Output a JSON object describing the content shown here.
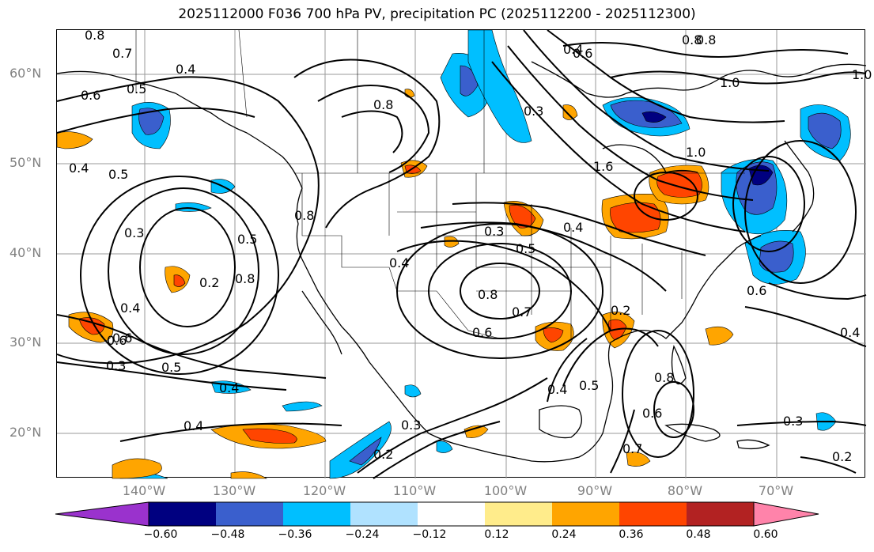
{
  "title": "2025112000 F036 700 hPa PV, precipitation PC (2025112200 - 2025112300)",
  "lat_labels": [
    "60°N",
    "50°N",
    "40°N",
    "30°N",
    "20°N"
  ],
  "lon_labels": [
    "140°W",
    "130°W",
    "120°W",
    "110°W",
    "100°W",
    "90°W",
    "80°W",
    "70°W"
  ],
  "contour_labels": [
    "0.8",
    "0.7",
    "0.5",
    "0.4",
    "0.6",
    "0.5",
    "0.8",
    "0.4",
    "0.5",
    "0.3",
    "0.2",
    "0.6",
    "0.8",
    "0.8",
    "0.4",
    "0.6",
    "0.3",
    "0.5",
    "0.4",
    "0.4",
    "0.3",
    "0.5",
    "0.4",
    "0.8",
    "0.7",
    "0.6",
    "0.4",
    "0.3",
    "0.2",
    "0.2",
    "0.4",
    "0.5",
    "0.6",
    "0.8",
    "0.7",
    "1.0",
    "0.8",
    "1.6",
    "0.4",
    "0.3",
    "0.2",
    "0.6",
    "0.4",
    "0.3",
    "0.8",
    "1.0",
    "1.0",
    "0.6"
  ],
  "colorbar": {
    "ticks": [
      "−0.60",
      "−0.48",
      "−0.36",
      "−0.24",
      "−0.12",
      "0.12",
      "0.24",
      "0.36",
      "0.48",
      "0.60"
    ],
    "colors": [
      "#9a32cd",
      "#000080",
      "#3a5fcd",
      "#00bfff",
      "#b0e2ff",
      "#ffffff",
      "#ffec8b",
      "#ffa500",
      "#ff4500",
      "#b22222",
      "#ff83aa"
    ]
  }
}
